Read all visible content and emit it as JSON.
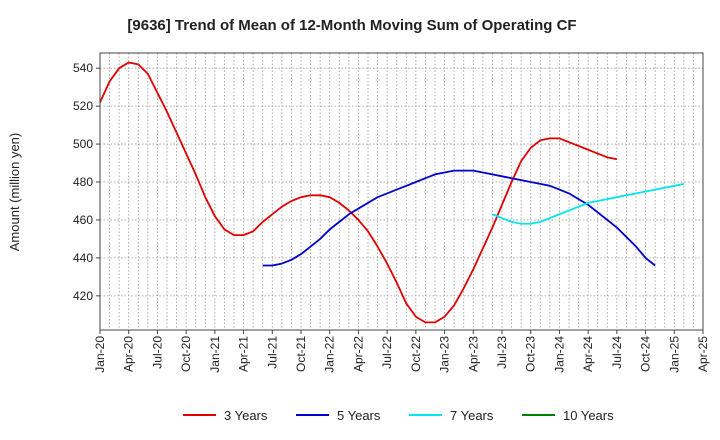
{
  "chart_data": {
    "type": "line",
    "title": "[9636]  Trend of Mean of 12-Month Moving Sum of Operating CF",
    "xlabel": "",
    "ylabel": "Amount (million yen)",
    "ylim": [
      402,
      548
    ],
    "yticks": [
      420,
      440,
      460,
      480,
      500,
      520,
      540
    ],
    "x_range": [
      "2020-01",
      "2025-04"
    ],
    "xtick_labels": [
      "Jan-20",
      "Apr-20",
      "Jul-20",
      "Oct-20",
      "Jan-21",
      "Apr-21",
      "Jul-21",
      "Oct-21",
      "Jan-22",
      "Apr-22",
      "Jul-22",
      "Oct-22",
      "Jan-23",
      "Apr-23",
      "Jul-23",
      "Oct-23",
      "Jan-24",
      "Apr-24",
      "Jul-24",
      "Oct-24",
      "Jan-25",
      "Apr-25"
    ],
    "grid": true,
    "legend_position": "bottom",
    "series": [
      {
        "name": "3 Years",
        "color": "#e00000",
        "start": "2020-01",
        "values": [
          522,
          533,
          540,
          543,
          542,
          537,
          527,
          517,
          506,
          495,
          484,
          472,
          462,
          455,
          452,
          452,
          454,
          459,
          463,
          467,
          470,
          472,
          473,
          473,
          472,
          469,
          465,
          460,
          454,
          446,
          437,
          427,
          416,
          409,
          406,
          406,
          409,
          415,
          424,
          434,
          445,
          456,
          468,
          480,
          491,
          498,
          502,
          503,
          503,
          501,
          499,
          497,
          495,
          493,
          492
        ]
      },
      {
        "name": "5 Years",
        "color": "#0000cc",
        "start": "2021-06",
        "values": [
          436,
          436,
          437,
          439,
          442,
          446,
          450,
          455,
          459,
          463,
          466,
          469,
          472,
          474,
          476,
          478,
          480,
          482,
          484,
          485,
          486,
          486,
          486,
          485,
          484,
          483,
          482,
          481,
          480,
          479,
          478,
          476,
          474,
          471,
          468,
          464,
          460,
          456,
          451,
          446,
          440,
          436
        ]
      },
      {
        "name": "7 Years",
        "color": "#00e5ee",
        "start": "2023-06",
        "values": [
          463,
          461,
          459,
          458,
          458,
          459,
          461,
          463,
          465,
          467,
          469,
          470,
          471,
          472,
          473,
          474,
          475,
          476,
          477,
          478,
          479
        ]
      },
      {
        "name": "10 Years",
        "color": "#008000",
        "start": "2025-01",
        "values": []
      }
    ]
  }
}
